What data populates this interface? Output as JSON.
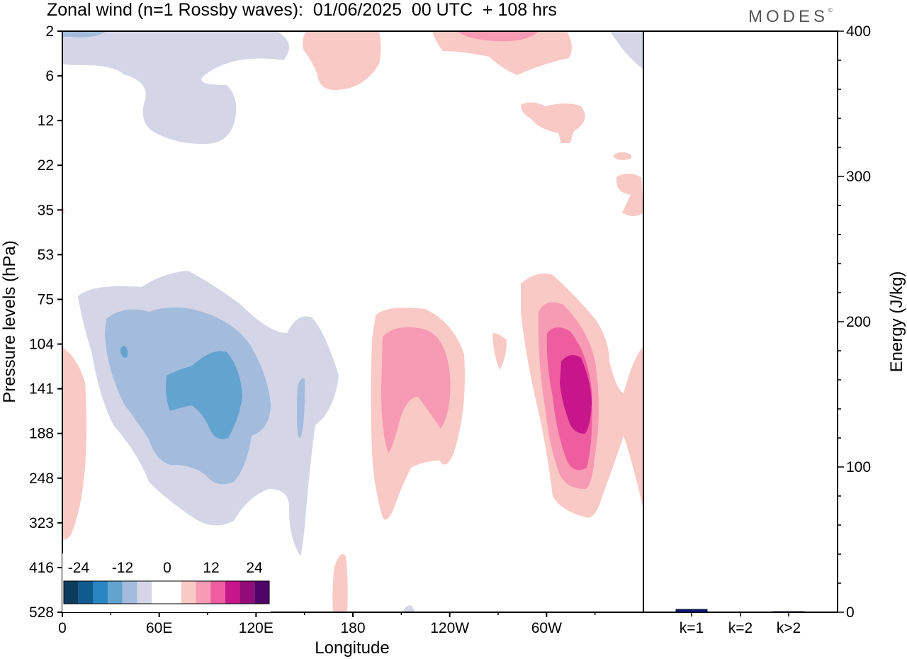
{
  "title": "Zonal wind (n=1 Rossby waves):  01/06/2025  00 UTC  + 108 hrs",
  "logo": "MODES",
  "colors": {
    "neg_scale": [
      "#0d3b5e",
      "#0f5a8e",
      "#2a86c2",
      "#62a3cf",
      "#a3bbdc",
      "#d4d6e8"
    ],
    "zero": "#ffffff",
    "pos_scale": [
      "#f9c9c5",
      "#f79ab3",
      "#ee5d9f",
      "#c6168a",
      "#920b79",
      "#4f0468"
    ],
    "bar": "#0a1a7a"
  },
  "chart_data": [
    {
      "type": "heatmap",
      "title": "Zonal wind (n=1 Rossby waves):  01/06/2025  00 UTC  + 108 hrs",
      "xlabel": "Longitude",
      "ylabel": "Pressure levels (hPa)",
      "x_ticks": [
        "0",
        "60E",
        "120E",
        "180",
        "120W",
        "60W"
      ],
      "x_tick_values": [
        0,
        60,
        120,
        180,
        240,
        300
      ],
      "xlim": [
        0,
        360
      ],
      "y_ticks": [
        "2",
        "6",
        "12",
        "22",
        "35",
        "53",
        "75",
        "104",
        "141",
        "188",
        "248",
        "323",
        "416",
        "528"
      ],
      "colorbar_labels": [
        "-24",
        "-12",
        "0",
        "12",
        "24"
      ],
      "colorbar_levels": [
        -30,
        -25,
        -20,
        -15,
        -10,
        -5,
        -2.5,
        2.5,
        5,
        10,
        15,
        20,
        25,
        30
      ],
      "features": [
        {
          "sign": "negative",
          "lon_range": [
            15,
            160
          ],
          "levels_hPa": [
            53,
            323
          ],
          "center_lon": 80,
          "center_level_hPa": 141,
          "max_abs": 15
        },
        {
          "sign": "negative",
          "lon_range": [
            0,
            105
          ],
          "levels_hPa": [
            2,
            12
          ],
          "center_lon": 40,
          "center_level_hPa": 6,
          "max_abs": 5
        },
        {
          "sign": "positive",
          "lon_range": [
            190,
            250
          ],
          "levels_hPa": [
            75,
            323
          ],
          "center_lon": 220,
          "center_level_hPa": 141,
          "max_abs": 12
        },
        {
          "sign": "positive",
          "lon_range": [
            280,
            360
          ],
          "levels_hPa": [
            53,
            323
          ],
          "center_lon": 322,
          "center_level_hPa": 141,
          "max_abs": 22
        },
        {
          "sign": "positive",
          "lon_range": [
            240,
            330
          ],
          "levels_hPa": [
            2,
            6
          ],
          "center_lon": 260,
          "center_level_hPa": 2,
          "max_abs": 10
        }
      ]
    },
    {
      "type": "bar",
      "ylabel": "Energy (J/kg)",
      "categories": [
        "k=1",
        "k=2",
        "k>2"
      ],
      "values": [
        2,
        0,
        0.5
      ],
      "ylim": [
        0,
        400
      ],
      "y_ticks": [
        "0",
        "100",
        "200",
        "300",
        "400"
      ]
    }
  ]
}
